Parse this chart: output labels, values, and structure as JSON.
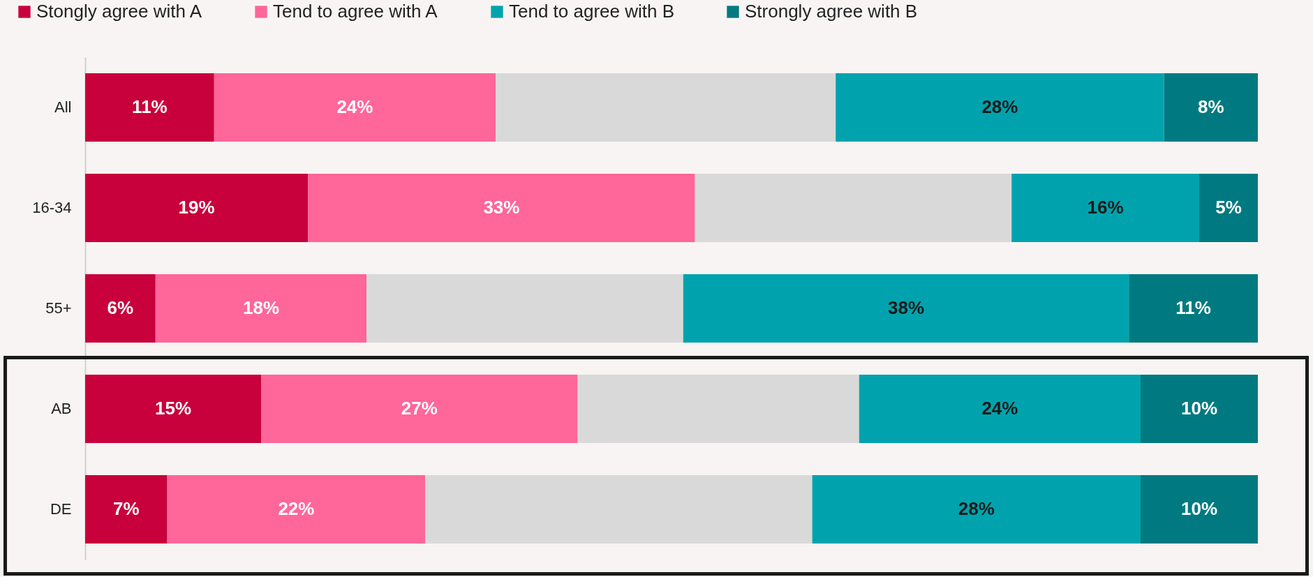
{
  "chart_data": {
    "type": "bar",
    "orientation": "horizontal",
    "stacked": true,
    "legend": "top left",
    "tick_labels": "y",
    "xlim": [
      0,
      100
    ],
    "categories": [
      "All",
      "16-34",
      "55+",
      "AB",
      "DE"
    ],
    "series": [
      {
        "name": "Stongly agree with A",
        "color": "#c8003c",
        "values": [
          11,
          19,
          6,
          15,
          7
        ],
        "value_labels": [
          "11%",
          "19%",
          "6%",
          "15%",
          "7%"
        ]
      },
      {
        "name": "Tend to agree with A",
        "color": "#ff6699",
        "values": [
          24,
          33,
          18,
          27,
          22
        ],
        "value_labels": [
          "24%",
          "33%",
          "18%",
          "27%",
          "22%"
        ]
      },
      {
        "color": "#d9d9d9",
        "values": [
          29,
          27,
          27,
          24,
          33
        ]
      },
      {
        "name": "Tend to agree with B",
        "color": "#00a3ad",
        "values": [
          28,
          16,
          38,
          24,
          28
        ],
        "value_labels": [
          "28%",
          "16%",
          "38%",
          "24%",
          "28%"
        ]
      },
      {
        "name": "Strongly agree with B",
        "color": "#007a80",
        "values": [
          8,
          5,
          11,
          10,
          10
        ],
        "value_labels": [
          "8%",
          "5%",
          "11%",
          "10%",
          "10%"
        ]
      }
    ]
  }
}
